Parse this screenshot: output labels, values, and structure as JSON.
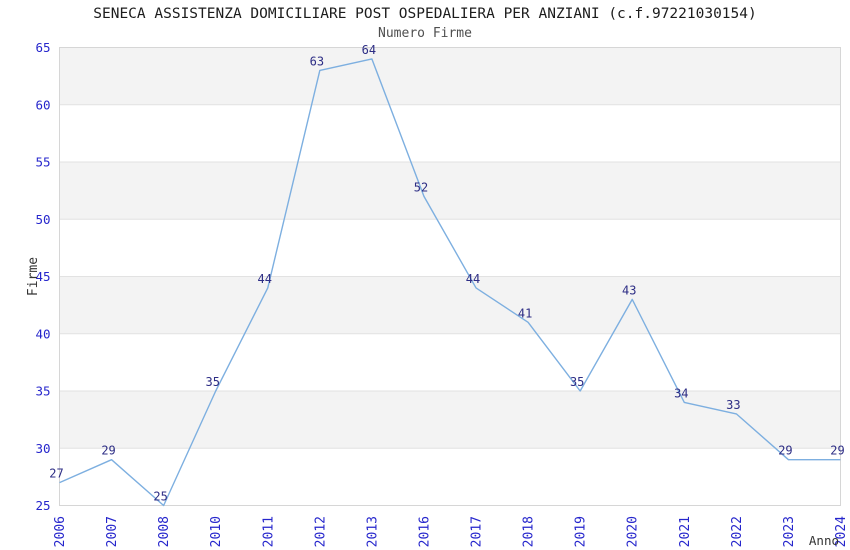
{
  "chart": {
    "title": "SENECA ASSISTENZA DOMICILIARE POST OSPEDALIERA PER ANZIANI (c.f.97221030154)",
    "subtitle": "Numero Firme"
  },
  "chart_data": {
    "type": "line",
    "title": "SENECA ASSISTENZA DOMICILIARE POST OSPEDALIERA PER ANZIANI (c.f.97221030154)",
    "subtitle": "Numero Firme",
    "xlabel": "Anno",
    "ylabel": "Firme",
    "categories": [
      "2006",
      "2007",
      "2008",
      "2010",
      "2011",
      "2012",
      "2013",
      "2016",
      "2017",
      "2018",
      "2019",
      "2020",
      "2021",
      "2022",
      "2023",
      "2024"
    ],
    "values": [
      27,
      29,
      25,
      35,
      44,
      63,
      64,
      52,
      44,
      41,
      35,
      43,
      34,
      33,
      29,
      29
    ],
    "ylim": [
      25,
      65
    ],
    "yticks": [
      25,
      30,
      35,
      40,
      45,
      50,
      55,
      60,
      65
    ],
    "grid": true,
    "legend": "none",
    "band_fill_alternating": true,
    "colors": {
      "line": "#7dafe0",
      "tick_label": "#2626cc",
      "data_label": "#2d2d85",
      "band": "#f3f3f3",
      "gridline": "#e2e2e2",
      "plot_border": "#d6d6d6",
      "title": "#1c1c1c",
      "subtitle": "#4f4f4f",
      "axis_label": "#333333"
    }
  }
}
